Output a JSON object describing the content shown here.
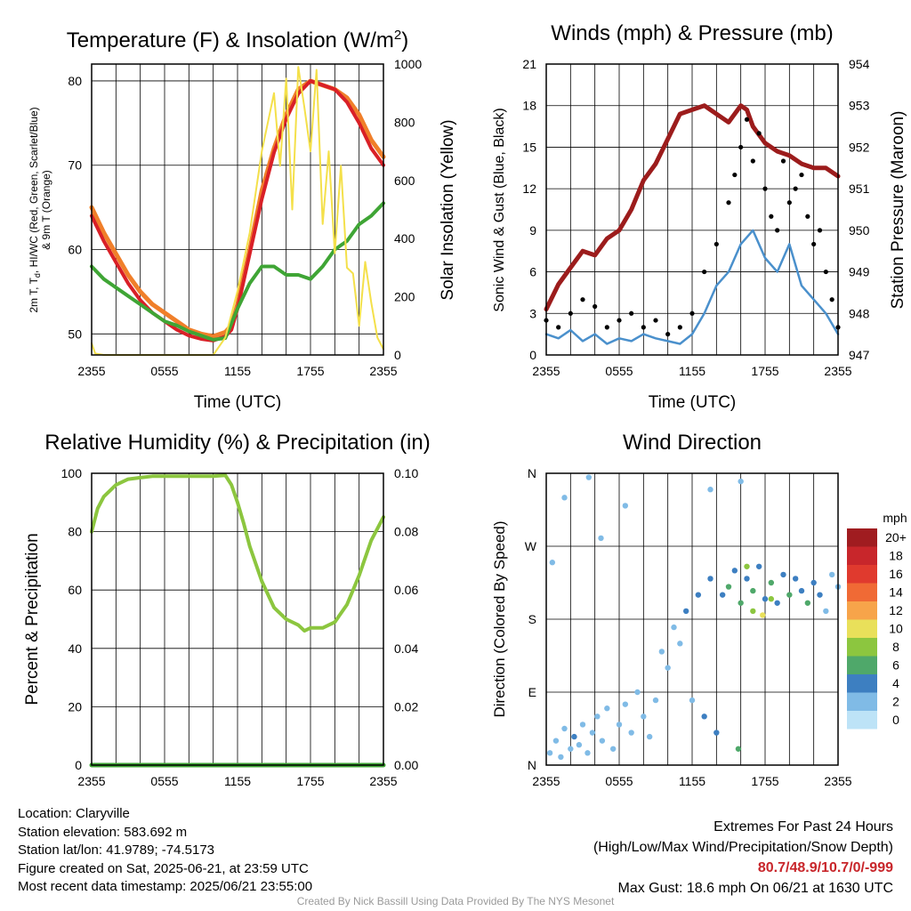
{
  "chart_data": [
    {
      "type": "line",
      "title_main": "Temperature (F) & Insolation (W/m",
      "title_sup": "2",
      "title_end": ")",
      "xlabel": "Time (UTC)",
      "ylabel_line1": "2m T, T",
      "ylabel_sub": "d",
      "ylabel_line1_end": ", HI/WC (Red, Green, Scarlet/Blue)",
      "ylabel_line2": "& 9m T (Orange)",
      "y2label": "Solar Insolation (Yellow)",
      "x_ticks": [
        "2355",
        "0555",
        "1155",
        "1755",
        "2355"
      ],
      "x_hours": [
        0,
        24
      ],
      "ylim": [
        47.5,
        82
      ],
      "y_ticks": [
        "50",
        "60",
        "70",
        "80"
      ],
      "y2lim": [
        0,
        1000
      ],
      "y2_ticks": [
        "0",
        "200",
        "400",
        "600",
        "800",
        "1000"
      ],
      "series": [
        {
          "color": "#f07f2a",
          "width": 5,
          "x": [
            0,
            1,
            2,
            3,
            4,
            5,
            6,
            7,
            8,
            9,
            10,
            11,
            11.5,
            12,
            13,
            14,
            15,
            16,
            17,
            18,
            19,
            20,
            21,
            22,
            23,
            24
          ],
          "values": [
            65,
            62,
            59.5,
            57,
            55,
            53.5,
            52.5,
            51.5,
            50.5,
            50,
            49.7,
            50.2,
            51,
            53.5,
            60,
            67,
            72,
            76,
            79,
            80,
            79.5,
            79,
            78,
            76,
            73,
            71
          ]
        },
        {
          "color": "#d92027",
          "width": 4,
          "x": [
            0,
            1,
            2,
            3,
            4,
            5,
            6,
            7,
            8,
            9,
            10,
            11,
            11.5,
            12,
            13,
            14,
            15,
            16,
            17,
            18,
            19,
            20,
            21,
            22,
            23,
            24
          ],
          "values": [
            64,
            61,
            58.5,
            56,
            54,
            52.5,
            51.5,
            50.5,
            49.8,
            49.4,
            49.2,
            49.7,
            50.5,
            53,
            59.5,
            66,
            71.5,
            75.5,
            78.5,
            80,
            79.5,
            79,
            77.5,
            75,
            72,
            70
          ]
        },
        {
          "color": "#3fa535",
          "width": 4,
          "x": [
            0,
            1,
            2,
            3,
            4,
            5,
            6,
            7,
            8,
            9,
            10,
            11,
            12,
            13,
            14,
            15,
            16,
            17,
            18,
            19,
            20,
            21,
            22,
            23,
            24
          ],
          "values": [
            58,
            56.5,
            55.5,
            54.5,
            53.5,
            52.5,
            51.5,
            51,
            50.3,
            49.8,
            49.3,
            49.5,
            53,
            56,
            58,
            58,
            57,
            57,
            56.5,
            58,
            60,
            61,
            63,
            64,
            65.5
          ]
        },
        {
          "color": "#f4e04a",
          "width": 2,
          "axis": "y2",
          "x": [
            0,
            0.3,
            1,
            2,
            3,
            4,
            5,
            6,
            7,
            8,
            9,
            10,
            11,
            12,
            13,
            14,
            15,
            15.5,
            16,
            16.5,
            17,
            17.5,
            18,
            18.5,
            19,
            19.5,
            20,
            20.5,
            21,
            21.5,
            22,
            22.5,
            23,
            23.5,
            24
          ],
          "values": [
            40,
            5,
            0,
            0,
            0,
            0,
            0,
            0,
            0,
            0,
            0,
            0,
            60,
            220,
            420,
            700,
            900,
            650,
            950,
            500,
            990,
            850,
            700,
            980,
            450,
            700,
            350,
            650,
            300,
            280,
            100,
            320,
            180,
            60,
            20
          ]
        }
      ]
    },
    {
      "type": "line",
      "title": "Winds (mph) & Pressure (mb)",
      "xlabel": "Time (UTC)",
      "ylabel": "Sonic Wind & Gust (Blue, Black)",
      "y2label": "Station Pressure (Maroon)",
      "x_ticks": [
        "2355",
        "0555",
        "1155",
        "1755",
        "2355"
      ],
      "x_hours": [
        0,
        24
      ],
      "ylim": [
        0,
        21
      ],
      "y_ticks": [
        "0",
        "3",
        "6",
        "9",
        "12",
        "15",
        "18",
        "21"
      ],
      "y2lim": [
        947,
        954
      ],
      "y2_ticks": [
        "947",
        "948",
        "949",
        "950",
        "951",
        "952",
        "953",
        "954"
      ],
      "series": [
        {
          "color": "#9c1c1c",
          "width": 5,
          "axis": "y2",
          "x": [
            0,
            1,
            2,
            3,
            4,
            5,
            6,
            7,
            8,
            9,
            10,
            11,
            12,
            13,
            14,
            15,
            16,
            16.5,
            17,
            18,
            19,
            20,
            21,
            22,
            23,
            24
          ],
          "values": [
            948.1,
            948.7,
            949.1,
            949.5,
            949.4,
            949.8,
            950.0,
            950.5,
            951.2,
            951.6,
            952.2,
            952.8,
            952.9,
            953.0,
            952.8,
            952.6,
            953.0,
            952.9,
            952.5,
            952.1,
            951.9,
            951.8,
            951.6,
            951.5,
            951.5,
            951.3
          ]
        },
        {
          "color": "#4a90cc",
          "width": 2.5,
          "x": [
            0,
            1,
            2,
            3,
            4,
            5,
            6,
            7,
            8,
            9,
            10,
            11,
            12,
            13,
            14,
            15,
            16,
            17,
            18,
            19,
            20,
            21,
            22,
            23,
            24
          ],
          "values": [
            1.5,
            1.2,
            1.8,
            1,
            1.5,
            0.8,
            1.2,
            1,
            1.5,
            1.2,
            1,
            0.8,
            1.5,
            3,
            5,
            6,
            8,
            9,
            7,
            6,
            8,
            5,
            4,
            3,
            1.5
          ]
        },
        {
          "color": "#000000",
          "style": "points",
          "x": [
            0,
            1,
            2,
            3,
            4,
            5,
            6,
            7,
            8,
            9,
            10,
            11,
            12,
            13,
            14,
            15,
            15.5,
            16,
            16.5,
            17,
            17.5,
            18,
            18.5,
            19,
            19.5,
            20,
            20.5,
            21,
            21.5,
            22,
            22.5,
            23,
            23.5,
            24
          ],
          "values": [
            2.5,
            2,
            3,
            4,
            3.5,
            2,
            2.5,
            3,
            2,
            2.5,
            1.5,
            2,
            3,
            6,
            8,
            11,
            13,
            15,
            17,
            14,
            16,
            12,
            10,
            9,
            14,
            11,
            12,
            13,
            10,
            8,
            9,
            6,
            4,
            2
          ]
        }
      ]
    },
    {
      "type": "line",
      "title": "Relative Humidity (%) & Precipitation (in)",
      "ylabel": "Percent & Precipitation",
      "x_ticks": [
        "2355",
        "0555",
        "1155",
        "1755",
        "2355"
      ],
      "x_hours": [
        0,
        24
      ],
      "ylim": [
        0,
        100
      ],
      "y_ticks": [
        "0",
        "20",
        "40",
        "60",
        "80",
        "100"
      ],
      "y2lim": [
        0,
        0.1
      ],
      "y2_ticks": [
        "0.00",
        "0.02",
        "0.04",
        "0.06",
        "0.08",
        "0.10"
      ],
      "series": [
        {
          "color": "#8cc63f",
          "width": 4,
          "x": [
            0,
            0.5,
            1,
            2,
            3,
            4,
            5,
            6,
            7,
            8,
            9,
            10,
            11,
            11.5,
            12,
            12.5,
            13,
            14,
            15,
            16,
            17,
            17.5,
            18,
            19,
            20,
            21,
            22,
            23,
            24
          ],
          "values": [
            80,
            88,
            92,
            96,
            98,
            98.5,
            99,
            99,
            99,
            99,
            99,
            99,
            99.3,
            96,
            90,
            83,
            75,
            63,
            54,
            50,
            48,
            46,
            47,
            47,
            49,
            55,
            65,
            77,
            85
          ]
        },
        {
          "color": "#3fa535",
          "width": 5,
          "axis": "y2",
          "x": [
            0,
            24
          ],
          "values": [
            0,
            0
          ]
        }
      ]
    },
    {
      "type": "scatter",
      "title": "Wind Direction",
      "ylabel": "Direction (Colored By Speed)",
      "x_ticks": [
        "2355",
        "0555",
        "1155",
        "1755",
        "2355"
      ],
      "x_hours": [
        0,
        24
      ],
      "y_ticks": [
        "N",
        "E",
        "S",
        "W",
        "N"
      ],
      "ylim": [
        0,
        360
      ],
      "legend_title": "mph",
      "legend_labels": [
        "20+",
        "18",
        "16",
        "14",
        "12",
        "10",
        "8",
        "6",
        "4",
        "2",
        "0"
      ],
      "legend_colors": [
        "#a01c20",
        "#c8262b",
        "#e03a2e",
        "#f06a35",
        "#f7a44a",
        "#e9e05a",
        "#8cc63f",
        "#4fa86a",
        "#3d7fc1",
        "#80bbe6",
        "#bde3f7"
      ],
      "points": [
        {
          "x": 0.3,
          "y": 15,
          "s": 1
        },
        {
          "x": 0.8,
          "y": 30,
          "s": 1
        },
        {
          "x": 1.2,
          "y": 10,
          "s": 1
        },
        {
          "x": 1.5,
          "y": 45,
          "s": 1
        },
        {
          "x": 2.0,
          "y": 20,
          "s": 1
        },
        {
          "x": 2.3,
          "y": 35,
          "s": 3
        },
        {
          "x": 2.7,
          "y": 25,
          "s": 2
        },
        {
          "x": 3.0,
          "y": 50,
          "s": 1
        },
        {
          "x": 3.4,
          "y": 15,
          "s": 1
        },
        {
          "x": 3.8,
          "y": 40,
          "s": 2
        },
        {
          "x": 4.2,
          "y": 60,
          "s": 1
        },
        {
          "x": 4.6,
          "y": 30,
          "s": 1
        },
        {
          "x": 5.0,
          "y": 70,
          "s": 2
        },
        {
          "x": 5.5,
          "y": 20,
          "s": 1
        },
        {
          "x": 6.0,
          "y": 50,
          "s": 1
        },
        {
          "x": 6.5,
          "y": 75,
          "s": 2
        },
        {
          "x": 7.0,
          "y": 40,
          "s": 1
        },
        {
          "x": 7.5,
          "y": 90,
          "s": 1
        },
        {
          "x": 8.0,
          "y": 60,
          "s": 2
        },
        {
          "x": 8.5,
          "y": 35,
          "s": 1
        },
        {
          "x": 9.0,
          "y": 80,
          "s": 2
        },
        {
          "x": 9.5,
          "y": 140,
          "s": 1
        },
        {
          "x": 10.0,
          "y": 120,
          "s": 1
        },
        {
          "x": 10.5,
          "y": 170,
          "s": 2
        },
        {
          "x": 11.0,
          "y": 150,
          "s": 1
        },
        {
          "x": 11.5,
          "y": 190,
          "s": 3
        },
        {
          "x": 12.0,
          "y": 80,
          "s": 2
        },
        {
          "x": 12.5,
          "y": 210,
          "s": 3
        },
        {
          "x": 13.0,
          "y": 60,
          "s": 3
        },
        {
          "x": 13.5,
          "y": 230,
          "s": 3
        },
        {
          "x": 14.0,
          "y": 40,
          "s": 4
        },
        {
          "x": 14.5,
          "y": 210,
          "s": 4
        },
        {
          "x": 15.0,
          "y": 220,
          "s": 5
        },
        {
          "x": 15.5,
          "y": 240,
          "s": 4
        },
        {
          "x": 15.8,
          "y": 20,
          "s": 5
        },
        {
          "x": 16.0,
          "y": 200,
          "s": 6
        },
        {
          "x": 16.5,
          "y": 230,
          "s": 4
        },
        {
          "x": 17.0,
          "y": 215,
          "s": 5
        },
        {
          "x": 17.5,
          "y": 245,
          "s": 3
        },
        {
          "x": 18.0,
          "y": 205,
          "s": 4
        },
        {
          "x": 18.5,
          "y": 225,
          "s": 6
        },
        {
          "x": 19.0,
          "y": 200,
          "s": 3
        },
        {
          "x": 19.5,
          "y": 235,
          "s": 4
        },
        {
          "x": 20.0,
          "y": 210,
          "s": 5
        },
        {
          "x": 20.5,
          "y": 230,
          "s": 3
        },
        {
          "x": 21.0,
          "y": 215,
          "s": 4
        },
        {
          "x": 21.5,
          "y": 200,
          "s": 6
        },
        {
          "x": 22.0,
          "y": 225,
          "s": 3
        },
        {
          "x": 22.5,
          "y": 210,
          "s": 4
        },
        {
          "x": 23.0,
          "y": 190,
          "s": 2
        },
        {
          "x": 23.5,
          "y": 235,
          "s": 2
        },
        {
          "x": 24.0,
          "y": 220,
          "s": 1
        },
        {
          "x": 0.5,
          "y": 250,
          "s": 1
        },
        {
          "x": 1.5,
          "y": 330,
          "s": 1
        },
        {
          "x": 3.5,
          "y": 355,
          "s": 1
        },
        {
          "x": 6.5,
          "y": 320,
          "s": 1
        },
        {
          "x": 4.5,
          "y": 280,
          "s": 1
        },
        {
          "x": 16.0,
          "y": 350,
          "s": 1
        },
        {
          "x": 13.5,
          "y": 340,
          "s": 1
        },
        {
          "x": 17.0,
          "y": 190,
          "s": 8
        },
        {
          "x": 16.5,
          "y": 245,
          "s": 7
        },
        {
          "x": 18.5,
          "y": 205,
          "s": 8
        },
        {
          "x": 17.8,
          "y": 185,
          "s": 9
        }
      ]
    }
  ],
  "info": {
    "location": "Location: Claryville",
    "elevation": "Station elevation: 583.692 m",
    "latlon": "Station lat/lon: 41.9789; -74.5173",
    "created": "Figure created on Sat, 2025-06-21, at 23:59 UTC",
    "recent": "Most recent data timestamp: 2025/06/21 23:55:00"
  },
  "extremes": {
    "line1": "Extremes For Past 24 Hours",
    "line2": "(High/Low/Max Wind/Precipitation/Snow Depth)",
    "values": "80.7/48.9/10.7/0/-999",
    "gust": "Max Gust: 18.6 mph On 06/21 at 1630 UTC"
  },
  "credit": "Created By Nick Bassill Using Data Provided By The NYS Mesonet"
}
